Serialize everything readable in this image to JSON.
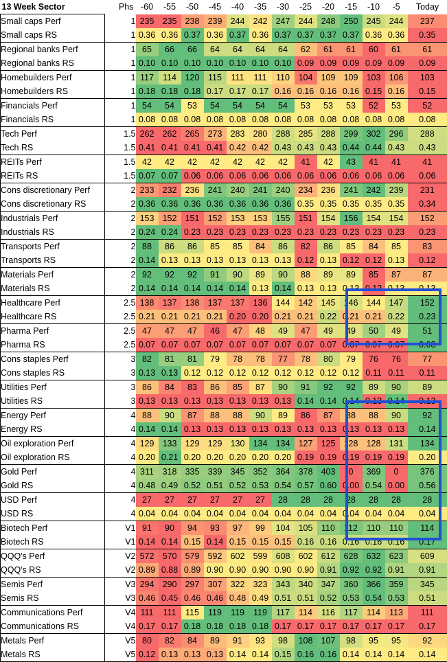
{
  "header": {
    "title": "13 Week Sector",
    "phs": "Phs",
    "columns": [
      "-60",
      "-55",
      "-50",
      "-45",
      "-40",
      "-35",
      "-30",
      "-25",
      "-20",
      "-15",
      "-10",
      "-5",
      "Today"
    ]
  },
  "palette": {
    "low": "#f8696b",
    "mid": "#ffeb84",
    "high": "#63be7b",
    "highlight_border": "#1f4fd6"
  },
  "highlight_boxes": [
    {
      "label": "Healthcare & Pharma, weeks -15 to Today"
    },
    {
      "label": "Energy through Biotech, weeks -15 to Today"
    }
  ],
  "rows": [
    {
      "name": "Small caps Perf",
      "phs": "1",
      "values": [
        "235",
        "235",
        "238",
        "239",
        "244",
        "242",
        "247",
        "244",
        "248",
        "250",
        "245",
        "244",
        "237"
      ]
    },
    {
      "name": "Small caps RS",
      "phs": "1",
      "values": [
        "0.36",
        "0.36",
        "0.37",
        "0.36",
        "0.37",
        "0.36",
        "0.37",
        "0.37",
        "0.37",
        "0.37",
        "0.36",
        "0.36",
        "0.35"
      ]
    },
    {
      "name": "Regional banks Perf",
      "phs": "1",
      "values": [
        "65",
        "66",
        "66",
        "64",
        "64",
        "64",
        "64",
        "62",
        "61",
        "61",
        "60",
        "61",
        "61"
      ]
    },
    {
      "name": "Regional banks RS",
      "phs": "1",
      "values": [
        "0.10",
        "0.10",
        "0.10",
        "0.10",
        "0.10",
        "0.10",
        "0.10",
        "0.09",
        "0.09",
        "0.09",
        "0.09",
        "0.09",
        "0.09"
      ]
    },
    {
      "name": "Homebuilders Perf",
      "phs": "1",
      "values": [
        "117",
        "114",
        "120",
        "115",
        "111",
        "111",
        "110",
        "104",
        "109",
        "109",
        "103",
        "106",
        "103"
      ]
    },
    {
      "name": "Homebuilders RS",
      "phs": "1",
      "values": [
        "0.18",
        "0.18",
        "0.18",
        "0.17",
        "0.17",
        "0.17",
        "0.16",
        "0.16",
        "0.16",
        "0.16",
        "0.15",
        "0.16",
        "0.15"
      ]
    },
    {
      "name": "Financials Perf",
      "phs": "1",
      "values": [
        "54",
        "54",
        "53",
        "54",
        "54",
        "54",
        "54",
        "53",
        "53",
        "53",
        "52",
        "53",
        "52"
      ]
    },
    {
      "name": "Financials RS",
      "phs": "1",
      "values": [
        "0.08",
        "0.08",
        "0.08",
        "0.08",
        "0.08",
        "0.08",
        "0.08",
        "0.08",
        "0.08",
        "0.08",
        "0.08",
        "0.08",
        "0.08"
      ]
    },
    {
      "name": "Tech Perf",
      "phs": "1.5",
      "values": [
        "262",
        "262",
        "265",
        "273",
        "283",
        "280",
        "288",
        "285",
        "288",
        "299",
        "302",
        "296",
        "288"
      ]
    },
    {
      "name": "Tech RS",
      "phs": "1.5",
      "values": [
        "0.41",
        "0.41",
        "0.41",
        "0.41",
        "0.42",
        "0.42",
        "0.43",
        "0.43",
        "0.43",
        "0.44",
        "0.44",
        "0.43",
        "0.43"
      ]
    },
    {
      "name": "REITs Perf",
      "phs": "1.5",
      "values": [
        "42",
        "42",
        "42",
        "42",
        "42",
        "42",
        "42",
        "41",
        "42",
        "43",
        "41",
        "41",
        "41"
      ]
    },
    {
      "name": "REITs RS",
      "phs": "1.5",
      "values": [
        "0.07",
        "0.07",
        "0.06",
        "0.06",
        "0.06",
        "0.06",
        "0.06",
        "0.06",
        "0.06",
        "0.06",
        "0.06",
        "0.06",
        "0.06"
      ]
    },
    {
      "name": "Cons discretionary Perf",
      "phs": "2",
      "values": [
        "233",
        "232",
        "236",
        "241",
        "240",
        "241",
        "240",
        "234",
        "236",
        "241",
        "242",
        "239",
        "231"
      ]
    },
    {
      "name": "Cons discretionary RS",
      "phs": "2",
      "values": [
        "0.36",
        "0.36",
        "0.36",
        "0.36",
        "0.36",
        "0.36",
        "0.36",
        "0.35",
        "0.35",
        "0.35",
        "0.35",
        "0.35",
        "0.34"
      ]
    },
    {
      "name": "Industrials Perf",
      "phs": "2",
      "values": [
        "153",
        "152",
        "151",
        "152",
        "153",
        "153",
        "155",
        "151",
        "154",
        "156",
        "154",
        "154",
        "152"
      ]
    },
    {
      "name": "Industrials RS",
      "phs": "2",
      "values": [
        "0.24",
        "0.24",
        "0.23",
        "0.23",
        "0.23",
        "0.23",
        "0.23",
        "0.23",
        "0.23",
        "0.23",
        "0.23",
        "0.23",
        "0.23"
      ]
    },
    {
      "name": "Transports Perf",
      "phs": "2",
      "values": [
        "88",
        "86",
        "86",
        "85",
        "85",
        "84",
        "86",
        "82",
        "86",
        "85",
        "84",
        "85",
        "83"
      ]
    },
    {
      "name": "Transports RS",
      "phs": "2",
      "values": [
        "0.14",
        "0.13",
        "0.13",
        "0.13",
        "0.13",
        "0.13",
        "0.13",
        "0.12",
        "0.13",
        "0.12",
        "0.12",
        "0.13",
        "0.12"
      ]
    },
    {
      "name": "Materials Perf",
      "phs": "2",
      "values": [
        "92",
        "92",
        "92",
        "91",
        "90",
        "89",
        "90",
        "88",
        "89",
        "89",
        "85",
        "87",
        "87"
      ]
    },
    {
      "name": "Materials RS",
      "phs": "2",
      "values": [
        "0.14",
        "0.14",
        "0.14",
        "0.14",
        "0.14",
        "0.13",
        "0.14",
        "0.13",
        "0.13",
        "0.13",
        "0.12",
        "0.13",
        "0.13"
      ]
    },
    {
      "name": "Healthcare Perf",
      "phs": "2.5",
      "values": [
        "138",
        "137",
        "138",
        "137",
        "137",
        "136",
        "144",
        "142",
        "145",
        "146",
        "144",
        "147",
        "152"
      ]
    },
    {
      "name": "Healthcare RS",
      "phs": "2.5",
      "values": [
        "0.21",
        "0.21",
        "0.21",
        "0.21",
        "0.20",
        "0.20",
        "0.21",
        "0.21",
        "0.22",
        "0.21",
        "0.21",
        "0.22",
        "0.23"
      ]
    },
    {
      "name": "Pharma Perf",
      "phs": "2.5",
      "values": [
        "47",
        "47",
        "47",
        "46",
        "47",
        "48",
        "49",
        "47",
        "49",
        "49",
        "50",
        "49",
        "51"
      ]
    },
    {
      "name": "Pharma RS",
      "phs": "2.5",
      "values": [
        "0.07",
        "0.07",
        "0.07",
        "0.07",
        "0.07",
        "0.07",
        "0.07",
        "0.07",
        "0.07",
        "0.07",
        "0.07",
        "0.07",
        "0.08"
      ]
    },
    {
      "name": "Cons staples Perf",
      "phs": "3",
      "values": [
        "82",
        "81",
        "81",
        "79",
        "78",
        "78",
        "77",
        "78",
        "80",
        "79",
        "76",
        "76",
        "77"
      ]
    },
    {
      "name": "Cons staples RS",
      "phs": "3",
      "values": [
        "0.13",
        "0.13",
        "0.12",
        "0.12",
        "0.12",
        "0.12",
        "0.12",
        "0.12",
        "0.12",
        "0.12",
        "0.11",
        "0.11",
        "0.11"
      ]
    },
    {
      "name": "Utilities Perf",
      "phs": "3",
      "values": [
        "86",
        "84",
        "83",
        "86",
        "85",
        "87",
        "90",
        "91",
        "92",
        "92",
        "89",
        "90",
        "89"
      ]
    },
    {
      "name": "Utilities RS",
      "phs": "3",
      "values": [
        "0.13",
        "0.13",
        "0.13",
        "0.13",
        "0.13",
        "0.13",
        "0.13",
        "0.14",
        "0.14",
        "0.14",
        "0.13",
        "0.14",
        "0.13"
      ]
    },
    {
      "name": "Energy Perf",
      "phs": "4",
      "values": [
        "88",
        "90",
        "87",
        "88",
        "88",
        "90",
        "89",
        "86",
        "87",
        "88",
        "88",
        "90",
        "92"
      ]
    },
    {
      "name": "Energy RS",
      "phs": "4",
      "values": [
        "0.14",
        "0.14",
        "0.13",
        "0.13",
        "0.13",
        "0.13",
        "0.13",
        "0.13",
        "0.13",
        "0.13",
        "0.13",
        "0.13",
        "0.14"
      ]
    },
    {
      "name": "Oil exploration Perf",
      "phs": "4",
      "values": [
        "129",
        "133",
        "129",
        "129",
        "130",
        "134",
        "134",
        "127",
        "125",
        "128",
        "128",
        "131",
        "134"
      ]
    },
    {
      "name": "Oil exploration RS",
      "phs": "4",
      "values": [
        "0.20",
        "0.21",
        "0.20",
        "0.20",
        "0.20",
        "0.20",
        "0.20",
        "0.19",
        "0.19",
        "0.19",
        "0.19",
        "0.19",
        "0.20"
      ]
    },
    {
      "name": "Gold Perf",
      "phs": "4",
      "values": [
        "311",
        "318",
        "335",
        "339",
        "345",
        "352",
        "364",
        "378",
        "403",
        "0",
        "369",
        "0",
        "376"
      ]
    },
    {
      "name": "Gold RS",
      "phs": "4",
      "values": [
        "0.48",
        "0.49",
        "0.52",
        "0.51",
        "0.52",
        "0.53",
        "0.54",
        "0.57",
        "0.60",
        "0.00",
        "0.54",
        "0.00",
        "0.56"
      ]
    },
    {
      "name": "USD Perf",
      "phs": "4",
      "values": [
        "27",
        "27",
        "27",
        "27",
        "27",
        "27",
        "28",
        "28",
        "28",
        "28",
        "28",
        "28",
        "28"
      ]
    },
    {
      "name": "USD RS",
      "phs": "4",
      "values": [
        "0.04",
        "0.04",
        "0.04",
        "0.04",
        "0.04",
        "0.04",
        "0.04",
        "0.04",
        "0.04",
        "0.04",
        "0.04",
        "0.04",
        "0.04"
      ]
    },
    {
      "name": "Biotech Perf",
      "phs": "V1",
      "values": [
        "91",
        "90",
        "94",
        "93",
        "97",
        "99",
        "104",
        "105",
        "110",
        "112",
        "110",
        "110",
        "114"
      ]
    },
    {
      "name": "Biotech RS",
      "phs": "V1",
      "values": [
        "0.14",
        "0.14",
        "0.15",
        "0.14",
        "0.15",
        "0.15",
        "0.15",
        "0.16",
        "0.16",
        "0.16",
        "0.16",
        "0.16",
        "0.17"
      ]
    },
    {
      "name": "QQQ's Perf",
      "phs": "V2",
      "values": [
        "572",
        "570",
        "579",
        "592",
        "602",
        "599",
        "608",
        "602",
        "612",
        "628",
        "632",
        "623",
        "609"
      ]
    },
    {
      "name": "QQQ's RS",
      "phs": "V2",
      "values": [
        "0.89",
        "0.88",
        "0.89",
        "0.90",
        "0.90",
        "0.90",
        "0.90",
        "0.90",
        "0.91",
        "0.92",
        "0.92",
        "0.91",
        "0.91"
      ]
    },
    {
      "name": "Semis Perf",
      "phs": "V3",
      "values": [
        "294",
        "290",
        "297",
        "307",
        "322",
        "323",
        "343",
        "340",
        "347",
        "360",
        "366",
        "359",
        "345"
      ]
    },
    {
      "name": "Semis RS",
      "phs": "V3",
      "values": [
        "0.46",
        "0.45",
        "0.46",
        "0.46",
        "0.48",
        "0.49",
        "0.51",
        "0.51",
        "0.52",
        "0.53",
        "0.54",
        "0.53",
        "0.51"
      ]
    },
    {
      "name": "Communications Perf",
      "phs": "V4",
      "values": [
        "111",
        "111",
        "115",
        "119",
        "119",
        "119",
        "117",
        "114",
        "116",
        "117",
        "114",
        "113",
        "111"
      ]
    },
    {
      "name": "Communications RS",
      "phs": "V4",
      "values": [
        "0.17",
        "0.17",
        "0.18",
        "0.18",
        "0.18",
        "0.18",
        "0.17",
        "0.17",
        "0.17",
        "0.17",
        "0.17",
        "0.17",
        "0.17"
      ]
    },
    {
      "name": "Metals Perf",
      "phs": "V5",
      "values": [
        "80",
        "82",
        "84",
        "89",
        "91",
        "93",
        "98",
        "108",
        "107",
        "98",
        "95",
        "95",
        "92"
      ]
    },
    {
      "name": "Metals RS",
      "phs": "V5",
      "values": [
        "0.12",
        "0.13",
        "0.13",
        "0.13",
        "0.14",
        "0.14",
        "0.15",
        "0.16",
        "0.16",
        "0.14",
        "0.14",
        "0.14",
        "0.14"
      ]
    }
  ]
}
